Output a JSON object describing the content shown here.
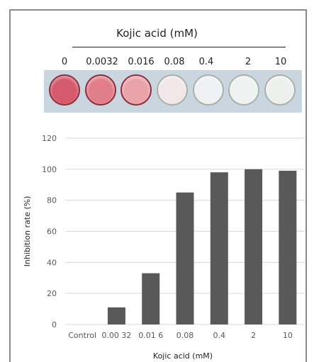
{
  "figure": {
    "photo_title": "Kojic acid (mM)",
    "concentrations": [
      "0",
      "0.0032",
      "0.016",
      "0.08",
      "0.4",
      "2",
      "10"
    ],
    "well_colors": [
      "#d45a6c",
      "#e07f8a",
      "#e9a3a9",
      "#f1e6e8",
      "#eef0f2",
      "#f0f1f1",
      "#eef0ee"
    ]
  },
  "chart_data": {
    "type": "bar",
    "categories": [
      "Control",
      "0.00 32",
      "0.01 6",
      "0.08",
      "0.4",
      "2",
      "10"
    ],
    "values": [
      0,
      11,
      33,
      85,
      98,
      100,
      99
    ],
    "ylim": [
      0,
      120
    ],
    "yticks": [
      "0",
      "20",
      "40",
      "60",
      "80",
      "100",
      "120"
    ],
    "ylabel": "Inhibition rate (%)",
    "xlabel": "Kojic acid (mM)",
    "grid": true,
    "bar_color": "#595959"
  }
}
